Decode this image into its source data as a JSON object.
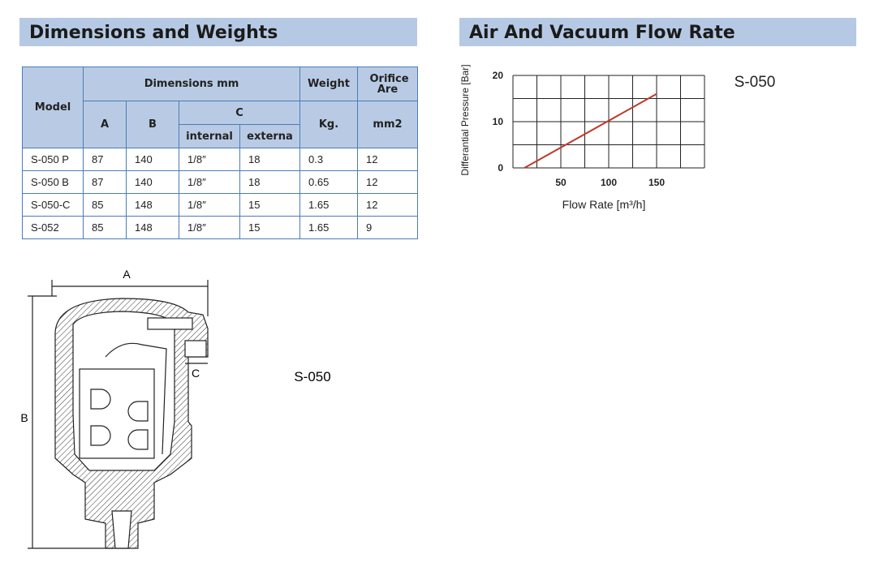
{
  "left_heading": "Dimensions and Weights",
  "right_heading": "Air And Vacuum Flow Rate",
  "table": {
    "header": {
      "model": "Model",
      "dimensions": "Dimensions mm",
      "weight": "Weight",
      "orifice": "Orifice Are",
      "a": "A",
      "b": "B",
      "c": "C",
      "internal": "internal",
      "external": "externa",
      "kg": "Kg.",
      "mm2": "mm2"
    },
    "rows": [
      [
        "S-050 P",
        "87",
        "140",
        "1/8″",
        "18",
        "0.3",
        "12"
      ],
      [
        "S-050 B",
        "87",
        "140",
        "1/8″",
        "18",
        "0.65",
        "12"
      ],
      [
        "S-050-C",
        "85",
        "148",
        "1/8″",
        "15",
        "1.65",
        "12"
      ],
      [
        "S-052",
        "85",
        "148",
        "1/8″",
        "15",
        "1.65",
        "9"
      ]
    ]
  },
  "chart_data": {
    "type": "line",
    "x": [
      12,
      150
    ],
    "series": [
      {
        "name": "S-050",
        "color": "#c0392b",
        "values": [
          0,
          16
        ]
      }
    ],
    "xlabel": "Flow Rate  [m³/h]",
    "ylabel": "Differantial Pressure [Bar]",
    "xlim": [
      0,
      200
    ],
    "ylim": [
      0,
      20
    ],
    "xticks": [
      50,
      100,
      150
    ],
    "yticks": [
      0,
      10,
      20
    ],
    "xgrid": [
      0,
      25,
      50,
      75,
      100,
      125,
      150,
      175,
      200
    ],
    "ygrid": [
      0,
      5,
      10,
      15,
      20
    ],
    "grid": true
  },
  "drawing": {
    "dim_a": "A",
    "dim_b": "B",
    "dim_c": "C",
    "model": "S-050"
  }
}
